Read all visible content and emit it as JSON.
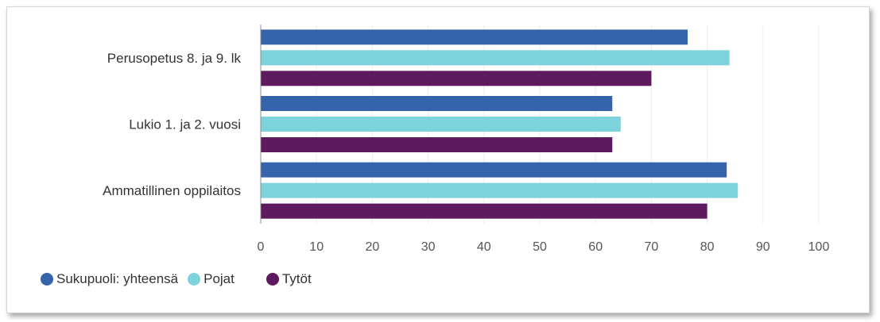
{
  "chart_data": {
    "type": "bar",
    "orientation": "horizontal",
    "categories": [
      "Perusopetus 8. ja 9. lk",
      "Lukio 1. ja 2. vuosi",
      "Ammatillinen oppilaitos"
    ],
    "series": [
      {
        "name": "Sukupuoli: yhteensä",
        "values": [
          76.5,
          63.0,
          83.5
        ],
        "color": "#3564ad"
      },
      {
        "name": "Pojat",
        "values": [
          84.0,
          64.5,
          85.5
        ],
        "color": "#7dd3dc"
      },
      {
        "name": "Tytöt",
        "values": [
          70.0,
          63.0,
          80.0
        ],
        "color": "#5e1a5f"
      }
    ],
    "xlim": [
      0,
      100
    ],
    "xticks": [
      0,
      10,
      20,
      30,
      40,
      50,
      60,
      70,
      80,
      90,
      100
    ],
    "grid": true,
    "legend_position": "bottom-left"
  },
  "legend": {
    "items": [
      {
        "label": "Sukupuoli: yhteensä",
        "color": "#3564ad"
      },
      {
        "label": "Pojat",
        "color": "#7dd3dc"
      },
      {
        "label": "Tytöt",
        "color": "#5e1a5f"
      }
    ]
  }
}
